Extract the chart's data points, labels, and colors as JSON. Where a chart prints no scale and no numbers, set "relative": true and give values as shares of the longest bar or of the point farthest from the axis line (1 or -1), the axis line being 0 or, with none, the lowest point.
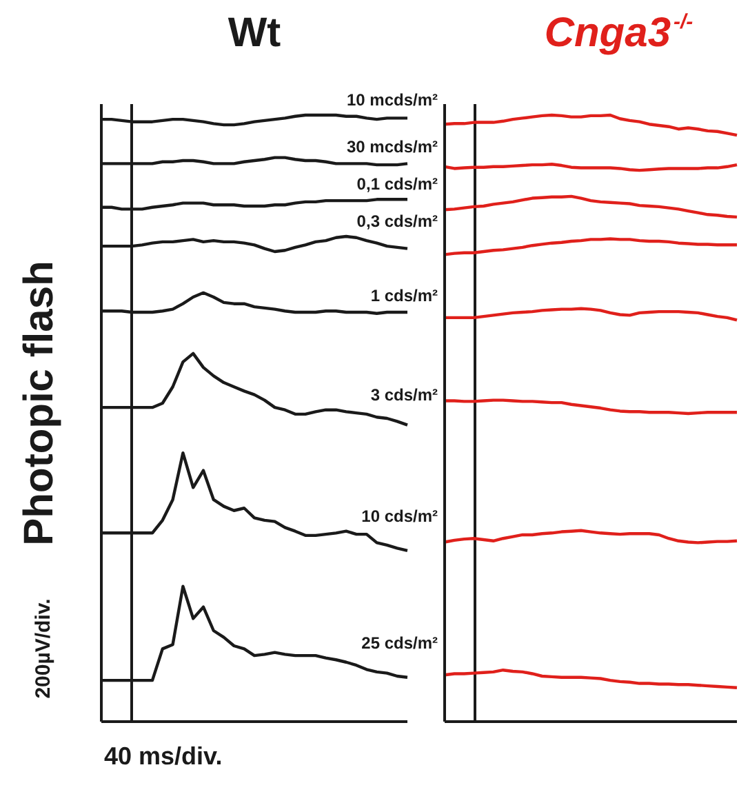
{
  "chart_data": [
    {
      "type": "line",
      "title": "Wt",
      "xlabel": "40 ms/div.",
      "ylabel": "200µV/div.",
      "annotations": [
        "Photopic flash"
      ],
      "relative": true,
      "legend": false,
      "categories": [
        null,
        null,
        null,
        null,
        null,
        null,
        null,
        null,
        null,
        null,
        null,
        null,
        null,
        null,
        null,
        null,
        null,
        null,
        null,
        null,
        null,
        null,
        null,
        null,
        null,
        null,
        null,
        null,
        null,
        null,
        null
      ],
      "series": [
        {
          "name": "10 mcds/m²",
          "color": "#1a1a1a",
          "values": [
            0.993,
            0.993,
            0.991,
            0.989,
            0.989,
            0.989,
            0.991,
            0.993,
            0.993,
            0.991,
            0.989,
            0.986,
            0.984,
            0.984,
            0.986,
            0.989,
            0.991,
            0.993,
            0.995,
            0.998,
            1,
            1,
            1,
            1,
            0.998,
            0.998,
            0.995,
            0.993,
            0.995,
            0.995,
            0.995
          ]
        },
        {
          "name": "30 mcds/m²",
          "color": "#1a1a1a",
          "values": [
            0.92,
            0.92,
            0.92,
            0.92,
            0.92,
            0.92,
            0.923,
            0.923,
            0.925,
            0.925,
            0.923,
            0.92,
            0.92,
            0.92,
            0.923,
            0.925,
            0.927,
            0.93,
            0.93,
            0.927,
            0.925,
            0.925,
            0.923,
            0.92,
            0.92,
            0.92,
            0.92,
            0.918,
            0.918,
            0.918,
            0.92
          ]
        },
        {
          "name": "0,1 cds/m²",
          "color": "#1a1a1a",
          "values": [
            0.848,
            0.848,
            0.845,
            0.845,
            0.845,
            0.848,
            0.85,
            0.852,
            0.855,
            0.855,
            0.855,
            0.852,
            0.852,
            0.852,
            0.85,
            0.85,
            0.85,
            0.852,
            0.852,
            0.855,
            0.857,
            0.857,
            0.859,
            0.859,
            0.859,
            0.859,
            0.859,
            0.861,
            0.861,
            0.861,
            0.861
          ]
        },
        {
          "name": "0,3 cds/m²",
          "color": "#1a1a1a",
          "values": [
            0.784,
            0.784,
            0.784,
            0.784,
            0.786,
            0.789,
            0.791,
            0.791,
            0.793,
            0.795,
            0.791,
            0.793,
            0.791,
            0.791,
            0.789,
            0.786,
            0.78,
            0.775,
            0.777,
            0.782,
            0.786,
            0.791,
            0.793,
            0.798,
            0.8,
            0.798,
            0.793,
            0.789,
            0.784,
            0.782,
            0.78
          ]
        },
        {
          "name": "1 cds/m²",
          "color": "#1a1a1a",
          "values": [
            0.677,
            0.677,
            0.677,
            0.675,
            0.675,
            0.675,
            0.677,
            0.68,
            0.689,
            0.7,
            0.707,
            0.7,
            0.691,
            0.689,
            0.689,
            0.684,
            0.682,
            0.68,
            0.677,
            0.675,
            0.675,
            0.675,
            0.677,
            0.677,
            0.675,
            0.675,
            0.675,
            0.673,
            0.675,
            0.675,
            0.675
          ]
        },
        {
          "name": "3 cds/m²",
          "color": "#1a1a1a",
          "values": [
            0.518,
            0.518,
            0.518,
            0.518,
            0.518,
            0.518,
            0.525,
            0.552,
            0.593,
            0.607,
            0.584,
            0.57,
            0.559,
            0.552,
            0.545,
            0.539,
            0.53,
            0.518,
            0.514,
            0.507,
            0.507,
            0.511,
            0.514,
            0.514,
            0.511,
            0.509,
            0.507,
            0.502,
            0.5,
            0.495,
            0.489
          ]
        },
        {
          "name": "10 cds/m²",
          "color": "#1a1a1a",
          "values": [
            0.311,
            0.311,
            0.311,
            0.311,
            0.311,
            0.311,
            0.332,
            0.366,
            0.443,
            0.386,
            0.414,
            0.366,
            0.355,
            0.348,
            0.352,
            0.336,
            0.332,
            0.33,
            0.32,
            0.314,
            0.307,
            0.307,
            0.309,
            0.311,
            0.314,
            0.309,
            0.309,
            0.295,
            0.291,
            0.286,
            0.282
          ]
        },
        {
          "name": "25 cds/m²",
          "color": "#1a1a1a",
          "values": [
            0.068,
            0.068,
            0.068,
            0.068,
            0.068,
            0.068,
            0.12,
            0.127,
            0.223,
            0.17,
            0.189,
            0.15,
            0.139,
            0.125,
            0.12,
            0.109,
            0.111,
            0.114,
            0.111,
            0.109,
            0.109,
            0.109,
            0.105,
            0.102,
            0.098,
            0.093,
            0.086,
            0.082,
            0.08,
            0.075,
            0.073
          ]
        }
      ]
    },
    {
      "type": "line",
      "title": "Cnga3$^{-/-}$",
      "relative": true,
      "legend": false,
      "categories": [
        null,
        null,
        null,
        null,
        null,
        null,
        null,
        null,
        null,
        null,
        null,
        null,
        null,
        null,
        null,
        null,
        null,
        null,
        null,
        null,
        null,
        null,
        null,
        null,
        null,
        null,
        null,
        null,
        null,
        null,
        null
      ],
      "series": [
        {
          "color": "#e0201b",
          "values": [
            0.985,
            0.986,
            0.986,
            0.988,
            0.988,
            0.988,
            0.99,
            0.993,
            0.995,
            0.997,
            0.999,
            1,
            0.999,
            0.997,
            0.997,
            0.999,
            0.999,
            1,
            0.994,
            0.991,
            0.989,
            0.985,
            0.983,
            0.981,
            0.977,
            0.979,
            0.977,
            0.974,
            0.973,
            0.97,
            0.967
          ]
        },
        {
          "color": "#e0201b",
          "values": [
            0.915,
            0.912,
            0.913,
            0.914,
            0.914,
            0.915,
            0.915,
            0.916,
            0.917,
            0.918,
            0.918,
            0.919,
            0.917,
            0.914,
            0.913,
            0.913,
            0.913,
            0.913,
            0.912,
            0.91,
            0.909,
            0.91,
            0.911,
            0.912,
            0.912,
            0.912,
            0.912,
            0.913,
            0.913,
            0.915,
            0.918
          ]
        },
        {
          "color": "#e0201b",
          "values": [
            0.844,
            0.845,
            0.847,
            0.849,
            0.85,
            0.853,
            0.855,
            0.857,
            0.86,
            0.863,
            0.864,
            0.865,
            0.865,
            0.866,
            0.863,
            0.859,
            0.857,
            0.856,
            0.855,
            0.854,
            0.851,
            0.85,
            0.849,
            0.847,
            0.845,
            0.842,
            0.839,
            0.836,
            0.835,
            0.833,
            0.832
          ]
        },
        {
          "color": "#e0201b",
          "values": [
            0.77,
            0.772,
            0.773,
            0.773,
            0.775,
            0.777,
            0.778,
            0.78,
            0.782,
            0.785,
            0.787,
            0.789,
            0.79,
            0.792,
            0.793,
            0.795,
            0.795,
            0.796,
            0.795,
            0.795,
            0.793,
            0.792,
            0.792,
            0.791,
            0.789,
            0.788,
            0.787,
            0.787,
            0.786,
            0.786,
            0.786
          ]
        },
        {
          "color": "#e0201b",
          "values": [
            0.666,
            0.666,
            0.666,
            0.666,
            0.668,
            0.67,
            0.672,
            0.674,
            0.675,
            0.676,
            0.678,
            0.679,
            0.68,
            0.68,
            0.681,
            0.68,
            0.678,
            0.674,
            0.671,
            0.67,
            0.674,
            0.675,
            0.676,
            0.676,
            0.676,
            0.675,
            0.674,
            0.671,
            0.668,
            0.666,
            0.662
          ]
        },
        {
          "color": "#e0201b",
          "values": [
            0.529,
            0.529,
            0.528,
            0.528,
            0.529,
            0.53,
            0.53,
            0.529,
            0.528,
            0.528,
            0.527,
            0.526,
            0.526,
            0.523,
            0.521,
            0.519,
            0.517,
            0.514,
            0.512,
            0.511,
            0.511,
            0.51,
            0.51,
            0.51,
            0.509,
            0.508,
            0.509,
            0.51,
            0.51,
            0.51,
            0.51
          ]
        },
        {
          "color": "#e0201b",
          "values": [
            0.296,
            0.299,
            0.301,
            0.302,
            0.3,
            0.298,
            0.302,
            0.305,
            0.308,
            0.308,
            0.31,
            0.311,
            0.313,
            0.314,
            0.315,
            0.313,
            0.311,
            0.31,
            0.309,
            0.31,
            0.31,
            0.31,
            0.308,
            0.302,
            0.298,
            0.296,
            0.295,
            0.296,
            0.297,
            0.297,
            0.298
          ]
        },
        {
          "color": "#e0201b",
          "values": [
            0.077,
            0.079,
            0.079,
            0.08,
            0.081,
            0.082,
            0.085,
            0.083,
            0.082,
            0.079,
            0.075,
            0.074,
            0.073,
            0.073,
            0.073,
            0.072,
            0.071,
            0.068,
            0.066,
            0.065,
            0.063,
            0.063,
            0.062,
            0.062,
            0.061,
            0.061,
            0.06,
            0.059,
            0.058,
            0.057,
            0.056
          ]
        }
      ]
    }
  ]
}
